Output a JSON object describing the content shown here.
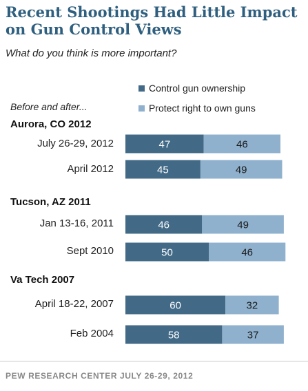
{
  "title": "Recent Shootings Had Little Impact on Gun Control Views",
  "subtitle": "What do you think is more important?",
  "before_after_label": "Before and after...",
  "footer": "PEW RESEARCH CENTER JULY 26-29, 2012",
  "colors": {
    "control": "#426a87",
    "protect": "#8fb1cd",
    "title": "#2f5f7f"
  },
  "chart_data": {
    "type": "bar",
    "stacked": true,
    "orientation": "horizontal",
    "title": "Recent Shootings Had Little Impact on Gun Control Views",
    "subtitle": "What do you think is more important?",
    "legend": [
      "Control gun ownership",
      "Protect right to own guns"
    ],
    "groups": [
      "Aurora, CO 2012",
      "Tucson, AZ 2011",
      "Va Tech 2007"
    ],
    "categories": [
      "July 26-29, 2012",
      "April 2012",
      "Jan 13-16, 2011",
      "Sept 2010",
      "April 18-22, 2007",
      "Feb 2004"
    ],
    "category_group": [
      0,
      0,
      1,
      1,
      2,
      2
    ],
    "series": [
      {
        "name": "Control gun ownership",
        "values": [
          47,
          45,
          46,
          50,
          60,
          58
        ]
      },
      {
        "name": "Protect right to own guns",
        "values": [
          46,
          49,
          49,
          46,
          32,
          37
        ]
      }
    ]
  }
}
